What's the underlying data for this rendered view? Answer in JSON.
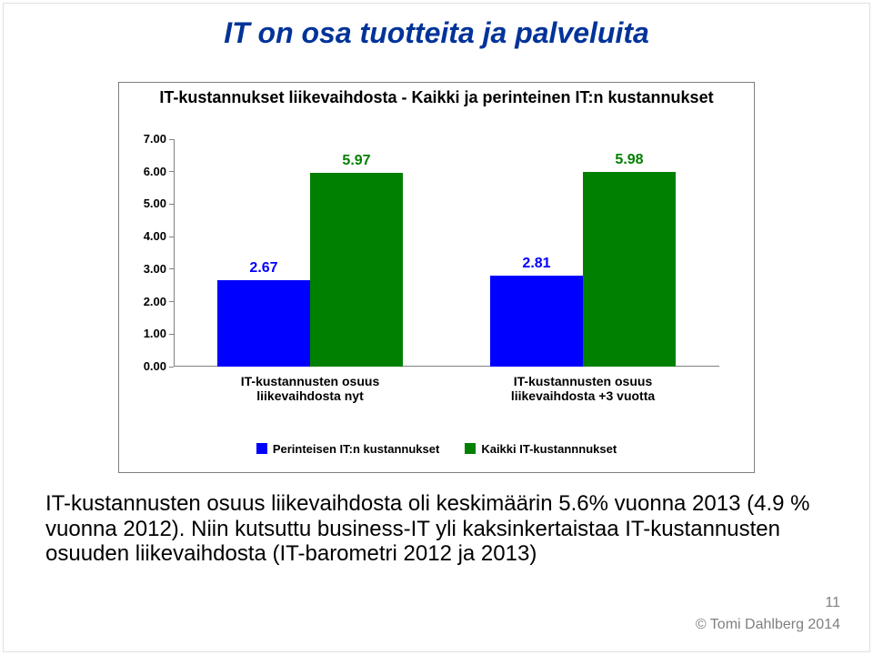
{
  "title": {
    "text": "IT on osa tuotteita ja palveluita",
    "fontsize": 32,
    "color": "#003399"
  },
  "chart": {
    "type": "bar",
    "title": "IT-kustannukset liikevaihdosta - Kaikki ja perinteinen IT:n kustannukset",
    "title_fontsize": 18,
    "title_color": "#000000",
    "background_color": "#ffffff",
    "border_color": "#7f7f7f",
    "axis_color": "#808080",
    "ylim": [
      0.0,
      7.0
    ],
    "ytick_step": 1.0,
    "ytick_labels": [
      "0.00",
      "1.00",
      "2.00",
      "3.00",
      "4.00",
      "5.00",
      "6.00",
      "7.00"
    ],
    "ytick_fontsize": 13,
    "categories": [
      "IT-kustannusten osuus liikevaihdosta nyt",
      "IT-kustannusten osuus liikevaihdosta +3 vuotta"
    ],
    "category_fontsize": 14,
    "series": [
      {
        "name": "Perinteisen IT:n kustannukset",
        "color": "#0000ff",
        "text_color": "#0000ff",
        "values": [
          2.67,
          2.81
        ]
      },
      {
        "name": "Kaikki IT-kustannnukset",
        "color": "#008000",
        "text_color": "#008000",
        "values": [
          5.97,
          5.98
        ]
      }
    ],
    "data_label_fontsize": 16,
    "legend_fontsize": 13,
    "bar_group_width_pct": 34,
    "bar_gap_pct": 0
  },
  "body_text": {
    "text": "IT-kustannusten osuus liikevaihdosta oli keskimäärin 5.6%  vuonna 2013 (4.9 % vuonna 2012). Niin kutsuttu business-IT yli kaksinkertaistaa IT-kustannusten osuuden liikevaihdosta (IT-barometri 2012 ja 2013)",
    "fontsize": 24,
    "color": "#000000"
  },
  "footer": {
    "page_number": "11",
    "copyright": "© Tomi Dahlberg 2014",
    "fontsize": 16,
    "color": "#808080"
  }
}
